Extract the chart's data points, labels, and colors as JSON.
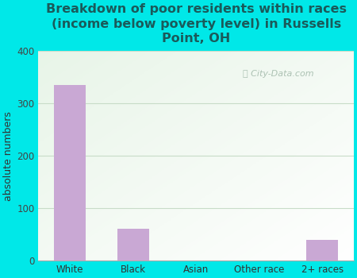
{
  "categories": [
    "White",
    "Black",
    "Asian",
    "Other race",
    "2+ races"
  ],
  "values": [
    335,
    60,
    0,
    0,
    40
  ],
  "bar_color": "#c9a8d4",
  "title": "Breakdown of poor residents within races\n(income below poverty level) in Russells\nPoint, OH",
  "ylabel": "absolute numbers",
  "ylim": [
    0,
    400
  ],
  "yticks": [
    0,
    100,
    200,
    300,
    400
  ],
  "title_color": "#1a5a5a",
  "title_fontsize": 11.5,
  "label_fontsize": 9,
  "tick_fontsize": 8.5,
  "outer_bg": "#00e8e8",
  "plot_bg_color": "#e8f4e8",
  "grid_color": "#c8dcc8",
  "watermark_text": "City-Data.com",
  "watermark_color": "#a0b8a8",
  "bar_width": 0.5
}
